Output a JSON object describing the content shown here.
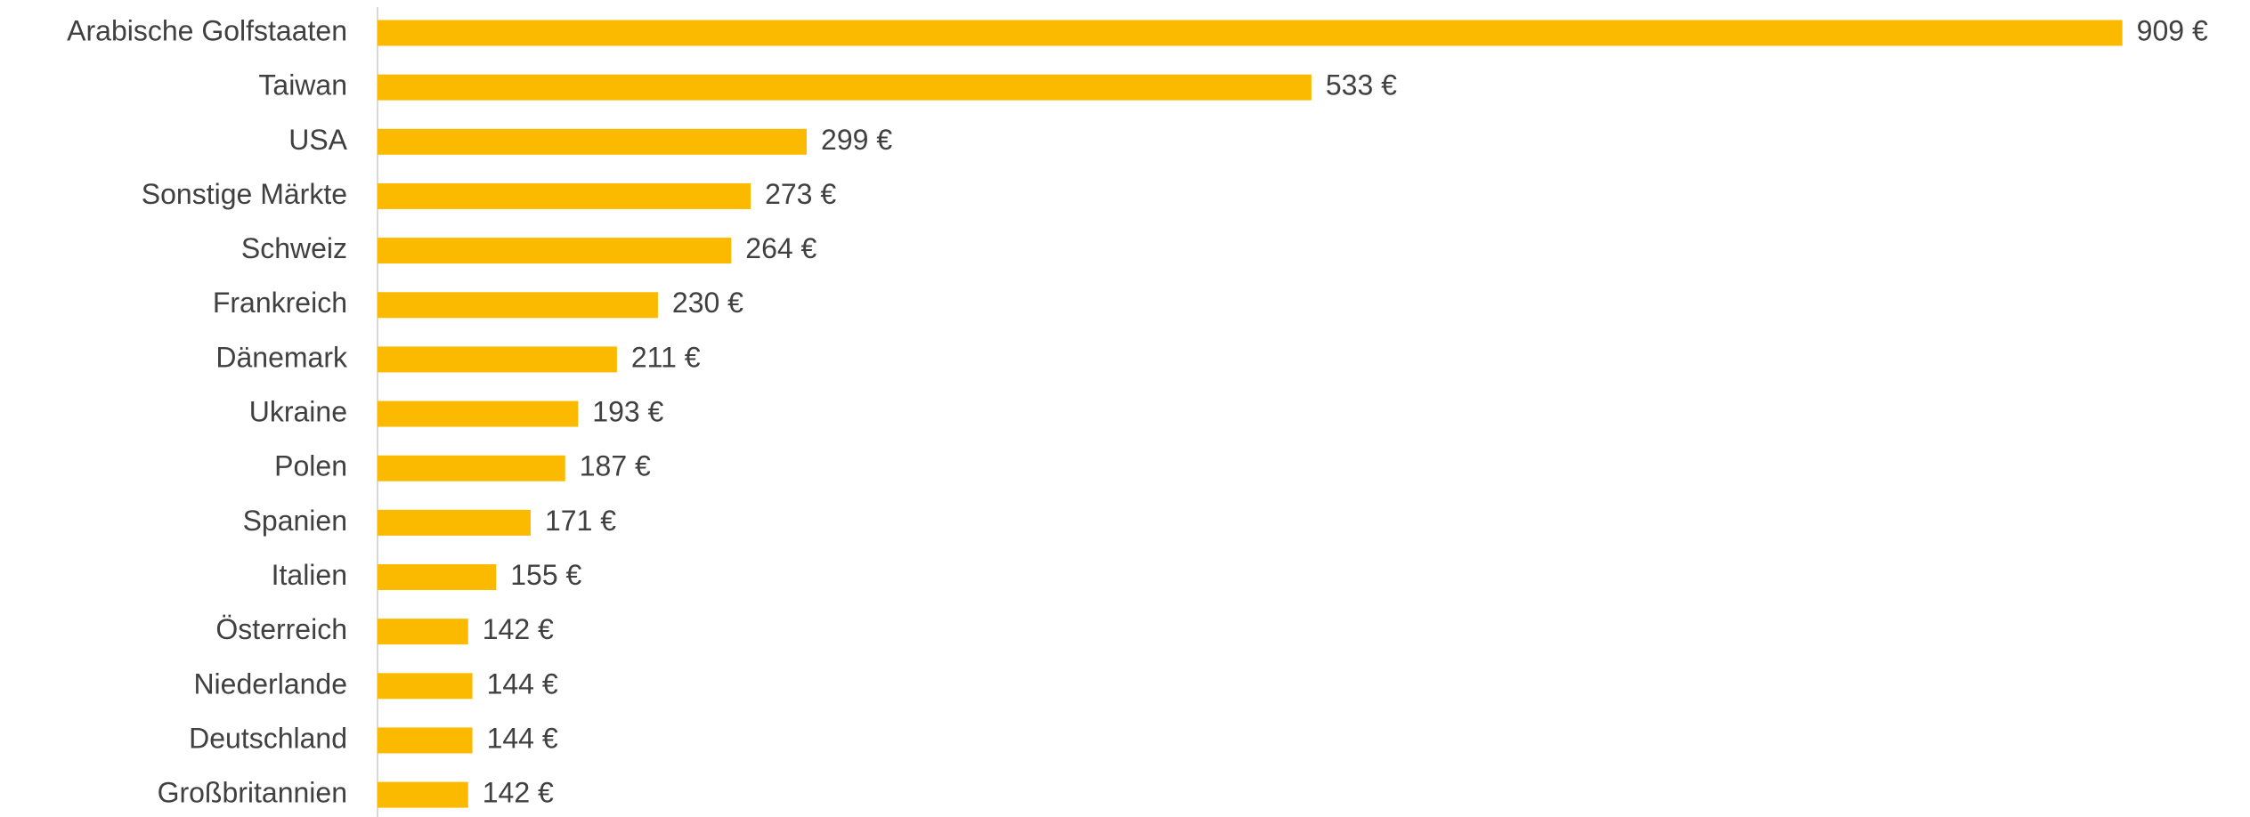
{
  "chart_data": {
    "type": "bar",
    "orientation": "horizontal",
    "categories": [
      "Arabische Golfstaaten",
      "Taiwan",
      "USA",
      "Sonstige Märkte",
      "Schweiz",
      "Frankreich",
      "Dänemark",
      "Ukraine",
      "Polen",
      "Spanien",
      "Italien",
      "Österreich",
      "Niederlande",
      "Deutschland",
      "Großbritannien"
    ],
    "values": [
      909,
      533,
      299,
      273,
      264,
      230,
      211,
      193,
      187,
      171,
      155,
      142,
      144,
      144,
      142
    ],
    "value_labels": [
      "909 €",
      "533 €",
      "299 €",
      "273 €",
      "264 €",
      "230 €",
      "211 €",
      "193 €",
      "187 €",
      "171 €",
      "155 €",
      "142 €",
      "144 €",
      "144 €",
      "142 €"
    ],
    "color": "#fbb900",
    "xlim": [
      100,
      950
    ]
  }
}
